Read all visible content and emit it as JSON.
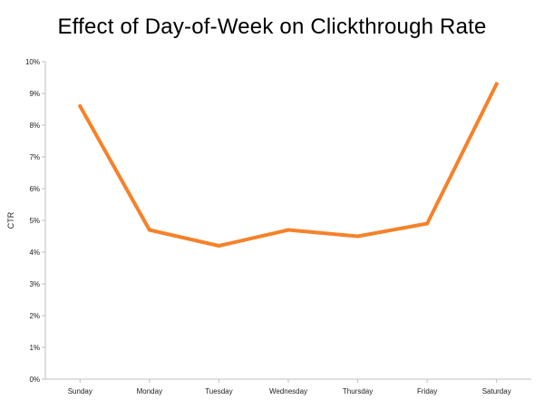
{
  "chart_data": {
    "type": "line",
    "title": "Effect of Day-of-Week on Clickthrough Rate",
    "xlabel": "",
    "ylabel": "CTR",
    "categories": [
      "Sunday",
      "Monday",
      "Tuesday",
      "Wednesday",
      "Thursday",
      "Friday",
      "Saturday"
    ],
    "series": [
      {
        "values": [
          8.6,
          4.7,
          4.2,
          4.7,
          4.5,
          4.9,
          9.3
        ]
      }
    ],
    "ylim": [
      0,
      10
    ],
    "yticks": [
      "0%",
      "1%",
      "2%",
      "3%",
      "4%",
      "5%",
      "6%",
      "7%",
      "8%",
      "9%",
      "10%"
    ],
    "grid": false,
    "legend": "none",
    "line_color": "#F5822A",
    "axis_color": "#BFBFBF"
  }
}
